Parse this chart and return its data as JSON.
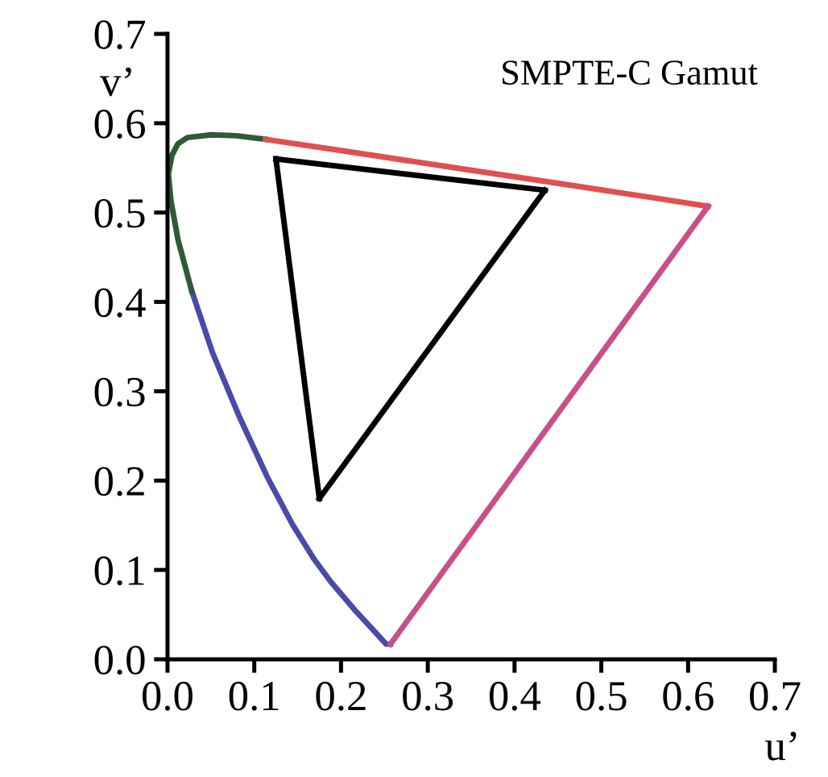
{
  "chart_data": {
    "type": "line",
    "title": "SMPTE-C Gamut",
    "xlabel": "u’",
    "ylabel": "v’",
    "xlim": [
      0.0,
      0.7
    ],
    "ylim": [
      0.0,
      0.7
    ],
    "xticks": [
      {
        "value": 0.0,
        "label": "0.0"
      },
      0.1,
      0.2,
      0.3,
      0.4,
      0.5,
      0.6,
      0.7
    ],
    "yticks": [
      {
        "value": 0.0,
        "label": "0.0"
      },
      0.1,
      0.2,
      0.3,
      0.4,
      0.5,
      0.6,
      0.7
    ],
    "grid": false,
    "legend": false,
    "marker": "none",
    "line_style": "solid",
    "series": [
      {
        "color": "#4a4aa8",
        "x": [
          0.257,
          0.252,
          0.235,
          0.216,
          0.188,
          0.169,
          0.144,
          0.115,
          0.083,
          0.052,
          0.028
        ],
        "values": [
          0.017,
          0.017,
          0.035,
          0.055,
          0.087,
          0.112,
          0.151,
          0.204,
          0.271,
          0.343,
          0.412
        ]
      },
      {
        "color": "#2f5a35",
        "x": [
          0.028,
          0.012,
          0.004,
          0.001,
          0.005,
          0.012,
          0.023,
          0.05,
          0.079,
          0.113
        ],
        "values": [
          0.412,
          0.47,
          0.513,
          0.543,
          0.564,
          0.577,
          0.584,
          0.587,
          0.586,
          0.582
        ]
      },
      {
        "color": "#e05050",
        "x": [
          0.113,
          0.203,
          0.332,
          0.469,
          0.557,
          0.623
        ],
        "values": [
          0.582,
          0.569,
          0.55,
          0.53,
          0.517,
          0.507
        ]
      },
      {
        "color": "#c8508a",
        "x": [
          0.623,
          0.257
        ],
        "values": [
          0.507,
          0.017
        ]
      },
      {
        "color": "#000000",
        "x": [
          0.125,
          0.435
        ],
        "values": [
          0.56,
          0.525
        ]
      },
      {
        "color": "#000000",
        "x": [
          0.435,
          0.175
        ],
        "values": [
          0.525,
          0.18
        ]
      },
      {
        "color": "#000000",
        "x": [
          0.175,
          0.125
        ],
        "values": [
          0.18,
          0.56
        ]
      }
    ]
  }
}
